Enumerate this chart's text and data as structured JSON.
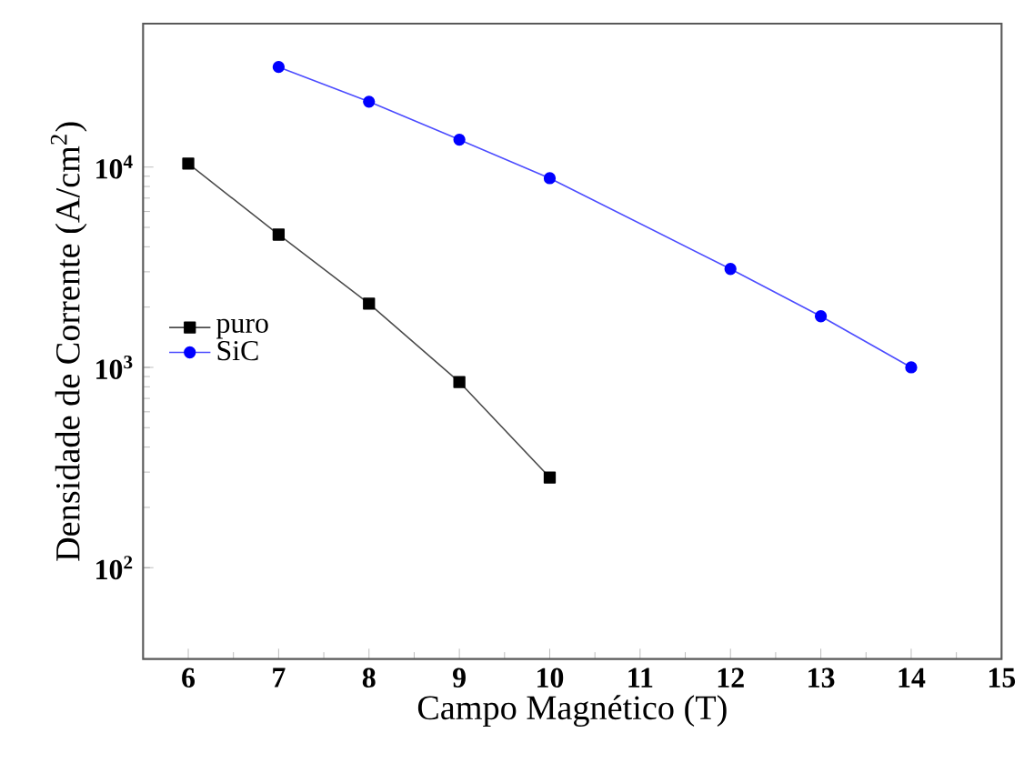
{
  "chart_data": {
    "type": "line",
    "xlabel": "Campo Magnético (T)",
    "ylabel": "Densidade de Corrente (A/cm$^{2}$)",
    "log": "y",
    "xlim": [
      5.5,
      15
    ],
    "ylim": [
      35,
      52000
    ],
    "xticks": [
      6,
      7,
      8,
      9,
      10,
      11,
      12,
      13,
      14,
      15
    ],
    "yticks": [
      {
        "value": 100,
        "label": "10$^{2}$"
      },
      {
        "value": 1000,
        "label": "10$^{3}$"
      },
      {
        "value": 10000,
        "label": "10$^{4}$"
      }
    ],
    "legend": "left",
    "grid": false,
    "series": [
      {
        "name": "puro",
        "color": "#000000",
        "marker": "square",
        "x": [
          6,
          7,
          8,
          9,
          10
        ],
        "values": [
          10400,
          4600,
          2080,
          845,
          282
        ]
      },
      {
        "name": "SiC",
        "color": "#0000ff",
        "marker": "circle",
        "x": [
          7,
          8,
          9,
          10,
          12,
          13,
          14
        ],
        "values": [
          31600,
          21200,
          13700,
          8800,
          3100,
          1800,
          1000
        ]
      }
    ]
  }
}
